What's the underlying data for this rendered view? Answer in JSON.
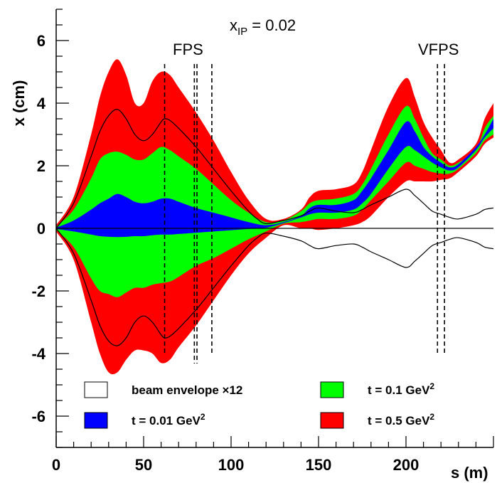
{
  "chart_data": {
    "type": "area",
    "title": "",
    "xlabel": "s (m)",
    "ylabel": "x (cm)",
    "xlim": [
      0,
      250
    ],
    "ylim": [
      -7,
      7
    ],
    "xticks": [
      "0",
      "50",
      "100",
      "150",
      "200"
    ],
    "xtick_values": [
      0,
      50,
      100,
      150,
      200
    ],
    "yticks": [
      "-6",
      "-4",
      "-2",
      "0",
      "2",
      "4",
      "6"
    ],
    "ytick_values": [
      -6,
      -4,
      -2,
      0,
      2,
      4,
      6
    ],
    "grid": false,
    "annotations": {
      "xip": {
        "base": "x",
        "sub": "IP",
        "rest": " = 0.02"
      },
      "fps": "FPS",
      "vfps": "VFPS"
    },
    "detector_lines_s": [
      62,
      79,
      80.5,
      89,
      218,
      222
    ],
    "legend": {
      "beam": "beam envelope ×12",
      "t001": "t = 0.01 GeV",
      "t01": "t = 0.1 GeV",
      "t05": "t = 0.5  GeV",
      "sup": "2"
    },
    "colors": {
      "t001": "#0000ff",
      "t01": "#00ff00",
      "t05": "#ff0000",
      "beam": "#000000"
    },
    "series": [
      {
        "name": "t = 0.5  GeV²",
        "color": "#ff0000",
        "x": [
          0,
          10,
          20,
          25,
          30,
          35,
          40,
          45,
          50,
          55,
          60,
          65,
          70,
          80,
          90,
          100,
          110,
          120,
          130,
          140,
          145,
          150,
          160,
          170,
          175,
          180,
          190,
          200,
          205,
          210,
          215,
          220,
          225,
          230,
          240,
          245,
          250
        ],
        "upper": [
          0.1,
          1.0,
          3.0,
          4.2,
          5.0,
          5.4,
          4.9,
          4.0,
          4.0,
          4.7,
          5.0,
          4.9,
          4.5,
          3.7,
          2.8,
          1.8,
          0.9,
          0.3,
          0.3,
          0.6,
          1.0,
          1.2,
          1.25,
          1.4,
          1.8,
          2.5,
          3.9,
          4.8,
          4.2,
          3.4,
          2.9,
          2.5,
          2.1,
          2.2,
          2.7,
          3.5,
          4.0
        ],
        "lower": [
          -0.1,
          -1.0,
          -3.0,
          -4.0,
          -4.6,
          -4.6,
          -4.2,
          -3.9,
          -3.9,
          -4.0,
          -4.3,
          -4.2,
          -3.8,
          -3.1,
          -2.3,
          -1.5,
          -0.8,
          -0.3,
          0.1,
          0.0,
          0.0,
          -0.05,
          0.0,
          0.1,
          0.2,
          0.4,
          1.0,
          1.5,
          1.5,
          1.5,
          1.5,
          1.55,
          1.6,
          1.8,
          2.3,
          2.7,
          2.9
        ]
      },
      {
        "name": "t = 0.1 GeV²",
        "color": "#00ff00",
        "x": [
          0,
          10,
          20,
          25,
          30,
          35,
          40,
          45,
          50,
          55,
          60,
          65,
          70,
          80,
          90,
          100,
          110,
          120,
          130,
          140,
          145,
          150,
          160,
          170,
          175,
          180,
          190,
          200,
          205,
          210,
          215,
          220,
          225,
          230,
          240,
          245,
          250
        ],
        "upper": [
          0.05,
          0.6,
          1.6,
          2.2,
          2.4,
          2.45,
          2.35,
          2.2,
          2.2,
          2.4,
          2.6,
          2.5,
          2.3,
          1.9,
          1.4,
          0.9,
          0.5,
          0.2,
          0.25,
          0.55,
          0.8,
          0.9,
          0.95,
          1.1,
          1.4,
          1.9,
          3.0,
          3.9,
          3.5,
          2.9,
          2.4,
          2.2,
          2.0,
          2.1,
          2.5,
          3.2,
          3.6
        ],
        "lower": [
          -0.05,
          -0.6,
          -1.6,
          -2.0,
          -2.1,
          -2.2,
          -2.05,
          -1.9,
          -1.9,
          -1.8,
          -1.75,
          -1.7,
          -1.55,
          -1.2,
          -0.95,
          -0.65,
          -0.35,
          -0.1,
          0.15,
          0.2,
          0.25,
          0.3,
          0.3,
          0.4,
          0.6,
          0.9,
          1.5,
          2.1,
          2.0,
          1.9,
          1.8,
          1.75,
          1.75,
          1.9,
          2.4,
          2.8,
          3.0
        ]
      },
      {
        "name": "t = 0.01 GeV²",
        "color": "#0000ff",
        "x": [
          0,
          10,
          20,
          25,
          30,
          35,
          40,
          45,
          50,
          55,
          60,
          65,
          70,
          80,
          90,
          100,
          110,
          120,
          130,
          140,
          145,
          150,
          160,
          170,
          175,
          180,
          190,
          200,
          205,
          210,
          215,
          220,
          225,
          230,
          240,
          245,
          250
        ],
        "upper": [
          0.02,
          0.25,
          0.6,
          0.8,
          0.95,
          1.1,
          1.0,
          0.85,
          0.8,
          0.85,
          0.95,
          0.95,
          0.85,
          0.65,
          0.5,
          0.35,
          0.2,
          0.1,
          0.2,
          0.4,
          0.65,
          0.75,
          0.75,
          0.9,
          1.2,
          1.6,
          2.5,
          3.4,
          3.1,
          2.6,
          2.3,
          2.1,
          1.95,
          2.05,
          2.6,
          3.0,
          3.5
        ],
        "lower": [
          -0.02,
          -0.1,
          -0.2,
          -0.25,
          -0.27,
          -0.28,
          -0.27,
          -0.25,
          -0.25,
          -0.22,
          -0.2,
          -0.2,
          -0.18,
          -0.14,
          -0.1,
          -0.06,
          -0.02,
          0.02,
          0.17,
          0.35,
          0.45,
          0.5,
          0.5,
          0.6,
          0.8,
          1.1,
          1.9,
          2.6,
          2.5,
          2.3,
          2.1,
          1.95,
          1.85,
          1.95,
          2.5,
          2.9,
          3.2
        ]
      }
    ],
    "beam_envelope": {
      "name": "beam envelope ×12",
      "x": [
        0,
        10,
        20,
        25,
        30,
        35,
        40,
        45,
        50,
        55,
        60,
        62,
        65,
        70,
        80,
        90,
        100,
        110,
        115,
        120,
        130,
        140,
        145,
        150,
        160,
        170,
        175,
        180,
        190,
        200,
        205,
        210,
        215,
        220,
        225,
        230,
        240,
        245,
        250
      ],
      "upper": [
        0.0,
        0.8,
        2.3,
        3.1,
        3.6,
        3.8,
        3.5,
        3.0,
        2.8,
        3.0,
        3.4,
        3.5,
        3.45,
        3.2,
        2.6,
        1.9,
        1.2,
        0.55,
        0.3,
        0.15,
        0.25,
        0.4,
        0.55,
        0.65,
        0.55,
        0.5,
        0.6,
        0.75,
        1.0,
        1.25,
        1.05,
        0.8,
        0.55,
        0.45,
        0.35,
        0.3,
        0.45,
        0.6,
        0.65
      ],
      "lower": [
        0.0,
        -0.8,
        -2.3,
        -3.1,
        -3.6,
        -3.75,
        -3.5,
        -3.0,
        -2.8,
        -3.0,
        -3.4,
        -3.5,
        -3.45,
        -3.2,
        -2.6,
        -1.9,
        -1.2,
        -0.55,
        -0.3,
        -0.15,
        -0.25,
        -0.4,
        -0.55,
        -0.65,
        -0.55,
        -0.5,
        -0.6,
        -0.75,
        -1.0,
        -1.25,
        -1.05,
        -0.8,
        -0.55,
        -0.45,
        -0.35,
        -0.3,
        -0.45,
        -0.6,
        -0.65
      ]
    }
  }
}
